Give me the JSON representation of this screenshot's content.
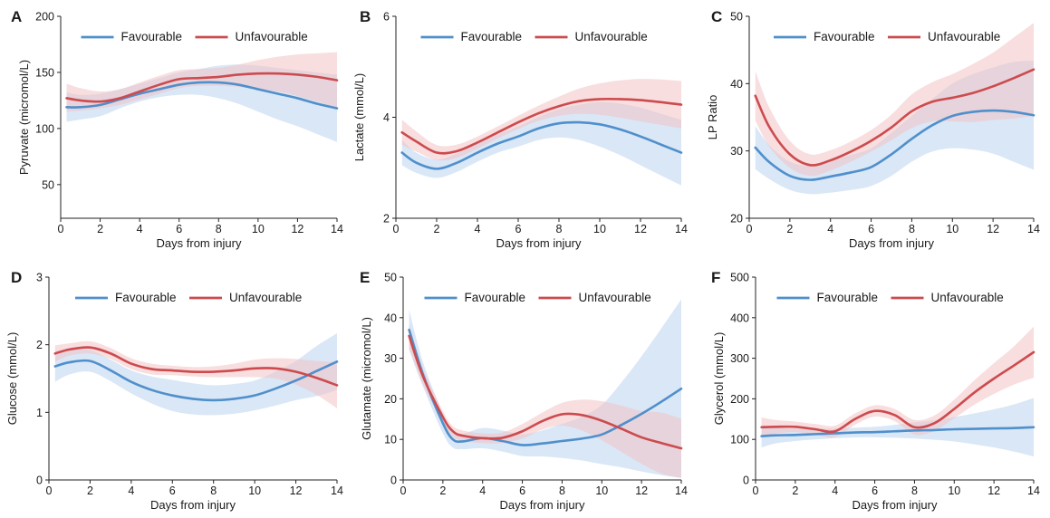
{
  "figure": {
    "legend": {
      "favourable": "Favourable",
      "unfavourable": "Unfavourable"
    },
    "colors": {
      "favourable": "#4f8fcb",
      "unfavourable": "#cc4b4e",
      "favourable_band": "#bcd3ee",
      "unfavourable_band": "#f3c3c5"
    },
    "legend_placement": "top-center",
    "grid": false
  },
  "chart_data": [
    {
      "panel": "A",
      "type": "line",
      "xlabel": "Days from injury",
      "ylabel": "Pyruvate (micromol/L)",
      "xlim": [
        0,
        14
      ],
      "ylim": [
        20,
        200
      ],
      "xticks": [
        0,
        2,
        4,
        6,
        8,
        10,
        12,
        14
      ],
      "yticks": [
        50,
        100,
        150,
        200
      ],
      "x": [
        0.3,
        1,
        2,
        3,
        4,
        5,
        6,
        7,
        8,
        9,
        10,
        11,
        12,
        13,
        14
      ],
      "series": [
        {
          "name": "Favourable",
          "values": [
            119,
            119,
            121,
            126,
            131,
            135,
            139,
            141,
            141,
            139,
            135,
            131,
            127,
            122,
            118
          ],
          "lower": [
            106,
            108,
            111,
            118,
            124,
            128,
            130,
            130,
            127,
            122,
            115,
            108,
            102,
            95,
            88
          ],
          "upper": [
            132,
            130,
            131,
            135,
            140,
            145,
            150,
            153,
            156,
            157,
            156,
            154,
            152,
            150,
            148
          ]
        },
        {
          "name": "Unfavourable",
          "values": [
            127,
            125,
            124,
            127,
            133,
            139,
            144,
            145,
            146,
            148,
            149,
            149,
            148,
            146,
            143
          ],
          "lower": [
            115,
            116,
            118,
            121,
            126,
            131,
            136,
            138,
            138,
            137,
            135,
            133,
            129,
            124,
            118
          ],
          "upper": [
            140,
            136,
            133,
            135,
            141,
            147,
            152,
            153,
            154,
            157,
            161,
            164,
            166,
            167,
            168
          ]
        }
      ]
    },
    {
      "panel": "B",
      "type": "line",
      "xlabel": "Days from injury",
      "ylabel": "Lactate (mmol/L)",
      "xlim": [
        0,
        14
      ],
      "ylim": [
        2,
        6
      ],
      "xticks": [
        0,
        2,
        4,
        6,
        8,
        10,
        12,
        14
      ],
      "yticks": [
        2,
        4,
        6
      ],
      "x": [
        0.3,
        1,
        2,
        3,
        4,
        5,
        6,
        7,
        8,
        9,
        10,
        11,
        12,
        13,
        14
      ],
      "series": [
        {
          "name": "Favourable",
          "values": [
            3.3,
            3.1,
            2.98,
            3.1,
            3.3,
            3.48,
            3.62,
            3.78,
            3.88,
            3.9,
            3.86,
            3.76,
            3.62,
            3.46,
            3.3
          ],
          "lower": [
            3.05,
            2.9,
            2.8,
            2.92,
            3.12,
            3.3,
            3.42,
            3.55,
            3.6,
            3.55,
            3.42,
            3.25,
            3.05,
            2.85,
            2.65
          ],
          "upper": [
            3.55,
            3.3,
            3.16,
            3.28,
            3.48,
            3.66,
            3.82,
            4.01,
            4.16,
            4.25,
            4.3,
            4.27,
            4.19,
            4.07,
            3.95
          ]
        },
        {
          "name": "Unfavourable",
          "values": [
            3.7,
            3.52,
            3.3,
            3.33,
            3.5,
            3.7,
            3.9,
            4.08,
            4.22,
            4.32,
            4.36,
            4.36,
            4.34,
            4.3,
            4.25
          ],
          "lower": [
            3.45,
            3.32,
            3.15,
            3.2,
            3.38,
            3.58,
            3.77,
            3.93,
            4.03,
            4.07,
            4.05,
            3.99,
            3.92,
            3.85,
            3.78
          ],
          "upper": [
            3.95,
            3.72,
            3.45,
            3.46,
            3.62,
            3.82,
            4.03,
            4.23,
            4.41,
            4.57,
            4.67,
            4.73,
            4.76,
            4.75,
            4.72
          ]
        }
      ]
    },
    {
      "panel": "C",
      "type": "line",
      "xlabel": "Days from injury",
      "ylabel": "LP Ratio",
      "xlim": [
        0,
        14
      ],
      "ylim": [
        20,
        50
      ],
      "xticks": [
        0,
        2,
        4,
        6,
        8,
        10,
        12,
        14
      ],
      "yticks": [
        20,
        30,
        40,
        50
      ],
      "x": [
        0.3,
        1,
        2,
        3,
        4,
        5,
        6,
        7,
        8,
        9,
        10,
        11,
        12,
        13,
        14
      ],
      "series": [
        {
          "name": "Favourable",
          "values": [
            30.5,
            28.3,
            26.3,
            25.7,
            26.2,
            26.8,
            27.6,
            29.5,
            31.8,
            33.8,
            35.2,
            35.8,
            36,
            35.8,
            35.3
          ],
          "lower": [
            27.3,
            25.8,
            24.2,
            23.6,
            23.8,
            24.2,
            24.8,
            26.3,
            28.4,
            29.9,
            30.4,
            30.2,
            29.6,
            28.4,
            27.2
          ],
          "upper": [
            33.7,
            30.8,
            28.4,
            27.8,
            28.6,
            29.4,
            30.4,
            32.7,
            35.2,
            37.7,
            40,
            41.4,
            42.4,
            43.2,
            43.4
          ]
        },
        {
          "name": "Unfavourable",
          "values": [
            38.2,
            33.5,
            29.5,
            27.9,
            28.6,
            29.9,
            31.5,
            33.5,
            35.9,
            37.3,
            37.9,
            38.6,
            39.6,
            40.8,
            42.1
          ],
          "lower": [
            34.5,
            30.6,
            27.5,
            26.3,
            27.1,
            28.4,
            29.9,
            31.6,
            33.4,
            34.4,
            34.4,
            34.3,
            34.6,
            34.8,
            35.2
          ],
          "upper": [
            41.9,
            36.4,
            31.5,
            29.5,
            30.1,
            31.4,
            33.1,
            35.4,
            38.4,
            40.2,
            41.4,
            42.9,
            44.6,
            46.8,
            49
          ]
        }
      ]
    },
    {
      "panel": "D",
      "type": "line",
      "xlabel": "Days from injury",
      "ylabel": "Glucose (mmol/L)",
      "xlim": [
        0,
        14
      ],
      "ylim": [
        0,
        3
      ],
      "xticks": [
        0,
        2,
        4,
        6,
        8,
        10,
        12,
        14
      ],
      "yticks": [
        0,
        1,
        2,
        3
      ],
      "x": [
        0.3,
        1,
        2,
        3,
        4,
        5,
        6,
        7,
        8,
        9,
        10,
        11,
        12,
        13,
        14
      ],
      "series": [
        {
          "name": "Favourable",
          "values": [
            1.68,
            1.74,
            1.76,
            1.62,
            1.45,
            1.33,
            1.25,
            1.2,
            1.18,
            1.2,
            1.25,
            1.35,
            1.47,
            1.61,
            1.75
          ],
          "lower": [
            1.45,
            1.56,
            1.6,
            1.46,
            1.28,
            1.13,
            1.02,
            0.97,
            0.96,
            0.98,
            1.03,
            1.1,
            1.18,
            1.24,
            1.33
          ],
          "upper": [
            1.91,
            1.92,
            1.92,
            1.78,
            1.62,
            1.53,
            1.48,
            1.43,
            1.4,
            1.42,
            1.47,
            1.6,
            1.76,
            1.98,
            2.17
          ]
        },
        {
          "name": "Unfavourable",
          "values": [
            1.87,
            1.93,
            1.96,
            1.87,
            1.72,
            1.64,
            1.62,
            1.6,
            1.6,
            1.62,
            1.65,
            1.65,
            1.6,
            1.51,
            1.4
          ],
          "lower": [
            1.75,
            1.84,
            1.87,
            1.79,
            1.64,
            1.56,
            1.55,
            1.53,
            1.52,
            1.52,
            1.52,
            1.5,
            1.41,
            1.26,
            1.06
          ],
          "upper": [
            1.99,
            2.02,
            2.05,
            1.95,
            1.8,
            1.72,
            1.69,
            1.67,
            1.68,
            1.72,
            1.78,
            1.8,
            1.79,
            1.76,
            1.74
          ]
        }
      ]
    },
    {
      "panel": "E",
      "type": "line",
      "xlabel": "Days from injury",
      "ylabel": "Glutamate (micromol/L)",
      "xlim": [
        0,
        14
      ],
      "ylim": [
        0,
        50
      ],
      "xticks": [
        0,
        2,
        4,
        6,
        8,
        10,
        12,
        14
      ],
      "yticks": [
        0,
        10,
        20,
        30,
        40,
        50
      ],
      "x": [
        0.3,
        1,
        2,
        2.5,
        3,
        4,
        5,
        6,
        7,
        8,
        9,
        10,
        11,
        12,
        13,
        14
      ],
      "series": [
        {
          "name": "Favourable",
          "values": [
            37,
            26,
            14,
            10,
            9.5,
            10.3,
            9.6,
            8.6,
            9,
            9.6,
            10.2,
            11.2,
            13.6,
            16.3,
            19.3,
            22.5
          ],
          "lower": [
            32,
            23,
            11.5,
            8,
            7.6,
            7.8,
            7,
            5.9,
            5.8,
            5.4,
            4.8,
            3.9,
            3.1,
            2.1,
            1.2,
            0.5
          ],
          "upper": [
            42,
            29,
            16.5,
            12,
            11.4,
            12.8,
            12.2,
            11.3,
            12.2,
            13.8,
            15.6,
            18.5,
            24.1,
            30.5,
            37.4,
            44.5
          ]
        },
        {
          "name": "Unfavourable",
          "values": [
            35.5,
            25.5,
            15.5,
            12,
            10.9,
            10.3,
            10.4,
            12,
            14.5,
            16.2,
            16,
            14.6,
            12.6,
            10.5,
            9.1,
            7.8
          ],
          "lower": [
            32.5,
            23.5,
            14,
            10.7,
            9.6,
            9.1,
            9.1,
            10.2,
            12.4,
            13.4,
            12.2,
            9.8,
            6.9,
            4,
            1.6,
            0.5
          ],
          "upper": [
            38.5,
            27.5,
            17,
            13.3,
            12.2,
            11.5,
            11.7,
            13.8,
            16.6,
            19,
            19.8,
            19.4,
            18.3,
            17,
            16.6,
            15.1
          ]
        }
      ]
    },
    {
      "panel": "F",
      "type": "line",
      "xlabel": "Days from injury",
      "ylabel": "Glycerol (mmol/L)",
      "xlim": [
        0,
        14
      ],
      "ylim": [
        0,
        500
      ],
      "xticks": [
        0,
        2,
        4,
        6,
        8,
        10,
        12,
        14
      ],
      "yticks": [
        0,
        100,
        200,
        300,
        400,
        500
      ],
      "x": [
        0.3,
        1,
        2,
        3,
        4,
        5,
        6,
        7,
        8,
        9,
        10,
        11,
        12,
        13,
        14
      ],
      "series": [
        {
          "name": "Favourable",
          "values": [
            108,
            110,
            111,
            113,
            115,
            117,
            118,
            120,
            122,
            123,
            125,
            126,
            127,
            128,
            130
          ],
          "lower": [
            80,
            90,
            96,
            100,
            103,
            105,
            105,
            104,
            102,
            99,
            95,
            88,
            80,
            70,
            58
          ],
          "upper": [
            136,
            130,
            126,
            126,
            127,
            129,
            131,
            136,
            142,
            147,
            155,
            164,
            174,
            186,
            202
          ]
        },
        {
          "name": "Unfavourable",
          "values": [
            130,
            131,
            131,
            125,
            120,
            150,
            170,
            160,
            130,
            140,
            175,
            215,
            250,
            282,
            315
          ],
          "lower": [
            106,
            114,
            118,
            112,
            106,
            136,
            156,
            145,
            112,
            121,
            152,
            185,
            212,
            235,
            252
          ],
          "upper": [
            154,
            148,
            144,
            138,
            134,
            164,
            184,
            175,
            148,
            159,
            198,
            245,
            288,
            329,
            378
          ]
        }
      ]
    }
  ]
}
